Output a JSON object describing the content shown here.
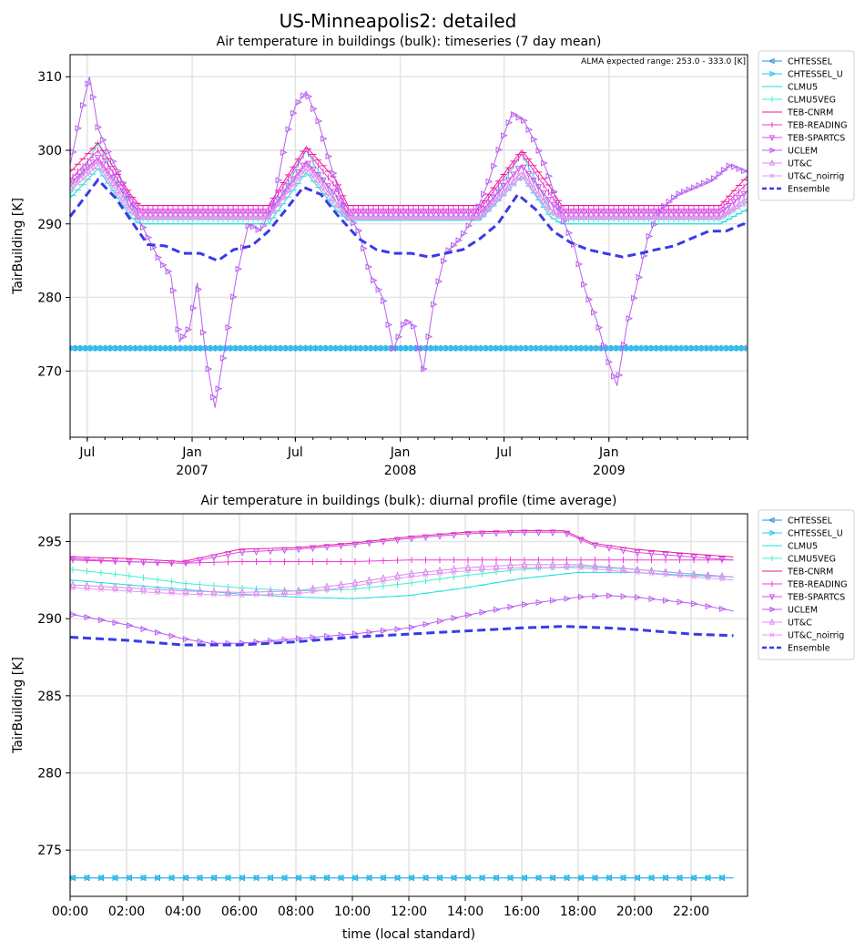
{
  "figure": {
    "suptitle": "US-Minneapolis2: detailed"
  },
  "legend_entries": [
    {
      "name": "CHTESSEL",
      "color": "#2f8fd8",
      "marker": "tri-left"
    },
    {
      "name": "CHTESSEL_U",
      "color": "#22c4f0",
      "marker": "tri-right"
    },
    {
      "name": "CLMU5",
      "color": "#20dfe0",
      "marker": "hline"
    },
    {
      "name": "CLMU5VEG",
      "color": "#40f0c8",
      "marker": "vline"
    },
    {
      "name": "TEB-CNRM",
      "color": "#f01890",
      "marker": "hline"
    },
    {
      "name": "TEB-READING",
      "color": "#f038d8",
      "marker": "vline"
    },
    {
      "name": "TEB-SPARTCS",
      "color": "#d050e8",
      "marker": "tri-down"
    },
    {
      "name": "UCLEM",
      "color": "#b860f0",
      "marker": "tri-right"
    },
    {
      "name": "UT&C",
      "color": "#d888f0",
      "marker": "tri-up"
    },
    {
      "name": "UT&C_noirrig",
      "color": "#e898f0",
      "marker": "x"
    },
    {
      "name": "Ensemble",
      "color": "#3a3ae8",
      "marker": "dashed"
    }
  ],
  "chart_data": [
    {
      "type": "line",
      "title": "Air temperature in buildings (bulk): timeseries (7 day mean)",
      "xlabel": "",
      "ylabel": "TairBuilding [K]",
      "annotation": "ALMA expected range: 253.0 - 333.0 [K]",
      "xlim": [
        "2006-06-01",
        "2009-09-01"
      ],
      "ylim": [
        261,
        313
      ],
      "y_ticks": [
        270,
        280,
        290,
        300,
        310
      ],
      "x_ticks": [
        {
          "date": "2006-07-01",
          "label": "Jul",
          "sub": ""
        },
        {
          "date": "2007-01-01",
          "label": "Jan",
          "sub": "2007"
        },
        {
          "date": "2007-07-01",
          "label": "Jul",
          "sub": ""
        },
        {
          "date": "2008-01-01",
          "label": "Jan",
          "sub": "2008"
        },
        {
          "date": "2008-07-01",
          "label": "Jul",
          "sub": ""
        },
        {
          "date": "2009-01-01",
          "label": "Jan",
          "sub": "2009"
        }
      ],
      "grid": true,
      "legend": "outside-right",
      "series": [
        {
          "name": "CHTESSEL",
          "x": [
            "2006-06-01",
            "2009-09-01"
          ],
          "values": [
            273.1,
            273.1
          ]
        },
        {
          "name": "CHTESSEL_U",
          "x": [
            "2006-06-01",
            "2009-09-01"
          ],
          "values": [
            273.1,
            273.1
          ]
        },
        {
          "name": "CLMU5",
          "x": [
            "2006-06-01",
            "2006-07-20",
            "2006-09-15",
            "2006-10-01",
            "2007-05-15",
            "2007-07-20",
            "2007-09-10",
            "2007-10-01",
            "2008-05-20",
            "2008-08-01",
            "2008-09-20",
            "2008-10-10",
            "2009-07-15",
            "2009-09-01"
          ],
          "values": [
            293.5,
            297.5,
            291,
            290,
            290,
            297,
            292,
            290.5,
            290.5,
            296.5,
            291,
            290,
            290,
            292
          ]
        },
        {
          "name": "CLMU5VEG",
          "x": [
            "2006-06-01",
            "2006-07-20",
            "2006-09-15",
            "2006-10-01",
            "2007-05-15",
            "2007-07-20",
            "2007-09-10",
            "2007-10-01",
            "2008-05-20",
            "2008-08-01",
            "2008-09-20",
            "2008-10-10",
            "2009-07-15",
            "2009-09-01"
          ],
          "values": [
            294,
            301,
            292,
            290.6,
            290.6,
            300,
            293,
            290.8,
            290.8,
            299.5,
            292,
            290.6,
            290.6,
            293
          ]
        },
        {
          "name": "TEB-CNRM",
          "x": [
            "2006-06-01",
            "2006-07-20",
            "2006-09-15",
            "2006-10-01",
            "2007-05-15",
            "2007-07-20",
            "2007-09-10",
            "2007-10-01",
            "2008-05-20",
            "2008-08-01",
            "2008-09-20",
            "2008-10-10",
            "2009-07-15",
            "2009-09-01"
          ],
          "values": [
            297,
            301,
            294,
            292.5,
            292.5,
            300.5,
            296,
            292.5,
            292.5,
            300,
            295,
            292.5,
            292.5,
            296.5
          ]
        },
        {
          "name": "TEB-READING",
          "x": [
            "2006-06-01",
            "2006-07-20",
            "2006-09-15",
            "2006-10-01",
            "2007-05-15",
            "2007-07-20",
            "2007-09-10",
            "2007-10-01",
            "2008-05-20",
            "2008-08-01",
            "2008-09-20",
            "2008-10-10",
            "2009-07-15",
            "2009-09-01"
          ],
          "values": [
            296,
            300,
            293.5,
            292,
            292,
            300,
            295,
            292,
            292,
            299.5,
            294,
            292,
            292,
            295.5
          ]
        },
        {
          "name": "TEB-SPARTCS",
          "x": [
            "2006-06-01",
            "2006-07-20",
            "2006-09-15",
            "2006-10-01",
            "2007-05-15",
            "2007-07-20",
            "2007-09-10",
            "2007-10-01",
            "2008-05-20",
            "2008-08-01",
            "2008-09-20",
            "2008-10-10",
            "2009-07-15",
            "2009-09-01"
          ],
          "values": [
            295.5,
            299,
            293,
            291.5,
            291.5,
            298.5,
            294,
            291.5,
            291.5,
            298,
            293,
            291.5,
            291.5,
            294.5
          ]
        },
        {
          "name": "UCLEM",
          "x": [
            "2006-06-01",
            "2006-06-20",
            "2006-07-05",
            "2006-07-20",
            "2006-08-05",
            "2006-08-25",
            "2006-09-15",
            "2006-10-10",
            "2006-11-05",
            "2006-11-25",
            "2006-12-10",
            "2006-12-28",
            "2007-01-10",
            "2007-01-25",
            "2007-02-10",
            "2007-03-01",
            "2007-03-20",
            "2007-04-10",
            "2007-05-01",
            "2007-05-25",
            "2007-06-15",
            "2007-07-01",
            "2007-07-20",
            "2007-08-10",
            "2007-09-01",
            "2007-09-25",
            "2007-10-20",
            "2007-11-10",
            "2007-12-01",
            "2007-12-20",
            "2008-01-10",
            "2008-01-25",
            "2008-02-10",
            "2008-03-01",
            "2008-03-20",
            "2008-04-15",
            "2008-05-10",
            "2008-06-05",
            "2008-06-25",
            "2008-07-15",
            "2008-08-05",
            "2008-08-25",
            "2008-09-15",
            "2008-10-10",
            "2008-11-01",
            "2008-11-20",
            "2008-12-10",
            "2008-12-28",
            "2009-01-15",
            "2009-02-01",
            "2009-02-20",
            "2009-03-10",
            "2009-04-01",
            "2009-05-01",
            "2009-06-01",
            "2009-07-01",
            "2009-08-01",
            "2009-09-01"
          ],
          "values": [
            298,
            305,
            310,
            303,
            300,
            297,
            293,
            289,
            285,
            283,
            274,
            276,
            282,
            272,
            265,
            274,
            283,
            290,
            289,
            293,
            302,
            306,
            308,
            304,
            298,
            292,
            289,
            283,
            280,
            273,
            277,
            276,
            270,
            280,
            286,
            288,
            291,
            296,
            301,
            305,
            304,
            301,
            297,
            291,
            287,
            281,
            277,
            272,
            268,
            276,
            282,
            288,
            292,
            294,
            295,
            296,
            298,
            297
          ]
        },
        {
          "name": "UT&C",
          "x": [
            "2006-06-01",
            "2006-07-20",
            "2006-09-15",
            "2006-10-01",
            "2007-05-15",
            "2007-07-20",
            "2007-09-10",
            "2007-10-01",
            "2008-05-20",
            "2008-08-01",
            "2008-09-20",
            "2008-10-10",
            "2009-07-15",
            "2009-09-01"
          ],
          "values": [
            295,
            298.5,
            292,
            291,
            291,
            298,
            293,
            291,
            291,
            297,
            292,
            291,
            291,
            293.5
          ]
        },
        {
          "name": "UT&C_noirrig",
          "x": [
            "2006-06-01",
            "2006-07-20",
            "2006-09-15",
            "2006-10-01",
            "2007-05-15",
            "2007-07-20",
            "2007-09-10",
            "2007-10-01",
            "2008-05-20",
            "2008-08-01",
            "2008-09-20",
            "2008-10-10",
            "2009-07-15",
            "2009-09-01"
          ],
          "values": [
            294.5,
            298,
            291.5,
            290.8,
            290.8,
            297.5,
            292.5,
            290.8,
            290.8,
            296.5,
            291.5,
            290.8,
            290.8,
            293
          ]
        },
        {
          "name": "Ensemble",
          "x": [
            "2006-06-01",
            "2006-07-20",
            "2006-08-20",
            "2006-09-20",
            "2006-10-15",
            "2006-11-15",
            "2006-12-15",
            "2007-01-15",
            "2007-02-15",
            "2007-03-15",
            "2007-04-15",
            "2007-05-15",
            "2007-06-15",
            "2007-07-15",
            "2007-08-15",
            "2007-09-15",
            "2007-10-20",
            "2007-11-20",
            "2007-12-20",
            "2008-01-20",
            "2008-02-20",
            "2008-03-20",
            "2008-04-20",
            "2008-05-20",
            "2008-06-20",
            "2008-07-25",
            "2008-08-25",
            "2008-09-25",
            "2008-10-25",
            "2008-11-25",
            "2008-12-25",
            "2009-01-25",
            "2009-02-25",
            "2009-03-25",
            "2009-04-25",
            "2009-05-25",
            "2009-06-25",
            "2009-07-25",
            "2009-08-25",
            "2009-09-01"
          ],
          "values": [
            291,
            296,
            293.5,
            290,
            287.2,
            287,
            286,
            286,
            285,
            286.5,
            287,
            289,
            292,
            295,
            294,
            291,
            288,
            286.5,
            286,
            286,
            285.5,
            286,
            286.5,
            288,
            290,
            294,
            292,
            289,
            287.5,
            286.5,
            286,
            285.5,
            286,
            286.5,
            287,
            288,
            289,
            289,
            290,
            289.8
          ]
        }
      ]
    },
    {
      "type": "line",
      "title": "Air temperature in buildings (bulk): diurnal profile (time average)",
      "xlabel": "time (local standard)",
      "ylabel": "TairBuilding [K]",
      "xlim": [
        0,
        24
      ],
      "ylim": [
        272,
        296.8
      ],
      "y_ticks": [
        275,
        280,
        285,
        290,
        295
      ],
      "x_ticks": [
        {
          "hour": 0,
          "label": "00:00"
        },
        {
          "hour": 2,
          "label": "02:00"
        },
        {
          "hour": 4,
          "label": "04:00"
        },
        {
          "hour": 6,
          "label": "06:00"
        },
        {
          "hour": 8,
          "label": "08:00"
        },
        {
          "hour": 10,
          "label": "10:00"
        },
        {
          "hour": 12,
          "label": "12:00"
        },
        {
          "hour": 14,
          "label": "14:00"
        },
        {
          "hour": 16,
          "label": "16:00"
        },
        {
          "hour": 18,
          "label": "18:00"
        },
        {
          "hour": 20,
          "label": "20:00"
        },
        {
          "hour": 22,
          "label": "22:00"
        }
      ],
      "grid": true,
      "legend": "outside-right",
      "series": [
        {
          "name": "CHTESSEL",
          "x": [
            0,
            23.5
          ],
          "values": [
            273.2,
            273.2
          ]
        },
        {
          "name": "CHTESSEL_U",
          "x": [
            0,
            23.5
          ],
          "values": [
            273.2,
            273.2
          ]
        },
        {
          "name": "CLMU5",
          "x": [
            0,
            2,
            4,
            6,
            8,
            10,
            12,
            14,
            16,
            18,
            20,
            22,
            23.5
          ],
          "values": [
            292.5,
            292.2,
            291.9,
            291.6,
            291.4,
            291.3,
            291.5,
            292,
            292.6,
            293,
            293,
            292.8,
            292.7
          ]
        },
        {
          "name": "CLMU5VEG",
          "x": [
            0,
            2,
            4,
            6,
            8,
            10,
            12,
            14,
            16,
            18,
            20,
            22,
            23.5
          ],
          "values": [
            293.2,
            292.8,
            292.3,
            292,
            291.8,
            291.9,
            292.3,
            292.8,
            293.2,
            293.4,
            293.2,
            292.9,
            292.7
          ]
        },
        {
          "name": "TEB-CNRM",
          "x": [
            0,
            2,
            4,
            6,
            8,
            10,
            12,
            14,
            16,
            17.5,
            18.5,
            20,
            22,
            23.5
          ],
          "values": [
            294,
            293.9,
            293.7,
            294.5,
            294.6,
            294.9,
            295.3,
            295.6,
            295.7,
            295.7,
            294.9,
            294.5,
            294.2,
            294
          ]
        },
        {
          "name": "TEB-READING",
          "x": [
            0,
            2,
            4,
            6,
            8,
            10,
            12,
            14,
            16,
            18,
            20,
            22,
            23.5
          ],
          "values": [
            293.8,
            293.7,
            293.6,
            293.7,
            293.7,
            293.7,
            293.8,
            293.8,
            293.8,
            293.8,
            293.8,
            293.8,
            293.8
          ]
        },
        {
          "name": "TEB-SPARTCS",
          "x": [
            0,
            2,
            4,
            6,
            8,
            10,
            12,
            14,
            16,
            17.5,
            18.5,
            20,
            22,
            23.5
          ],
          "values": [
            293.9,
            293.7,
            293.6,
            294.3,
            294.5,
            294.8,
            295.2,
            295.5,
            295.6,
            295.6,
            294.8,
            294.3,
            294,
            293.8
          ]
        },
        {
          "name": "UCLEM",
          "x": [
            0,
            2,
            4,
            5,
            6,
            8,
            10,
            12,
            14,
            16,
            18,
            19,
            20,
            22,
            23.5
          ],
          "values": [
            290.3,
            289.6,
            288.7,
            288.4,
            288.4,
            288.7,
            289,
            289.4,
            290.2,
            290.9,
            291.4,
            291.5,
            291.4,
            291,
            290.5
          ]
        },
        {
          "name": "UT&C",
          "x": [
            0,
            2,
            4,
            6,
            8,
            10,
            12,
            14,
            16,
            18,
            20,
            22,
            23.5
          ],
          "values": [
            292.2,
            292,
            291.8,
            291.7,
            291.8,
            292.3,
            292.9,
            293.3,
            293.5,
            293.5,
            293.2,
            292.9,
            292.7
          ]
        },
        {
          "name": "UT&C_noirrig",
          "x": [
            0,
            2,
            4,
            6,
            8,
            10,
            12,
            14,
            16,
            18,
            20,
            22,
            23.5
          ],
          "values": [
            292,
            291.8,
            291.6,
            291.5,
            291.6,
            292.1,
            292.7,
            293.1,
            293.3,
            293.3,
            293,
            292.7,
            292.5
          ]
        },
        {
          "name": "Ensemble",
          "x": [
            0,
            2,
            4,
            5,
            6,
            8,
            10,
            12,
            14,
            16,
            17.5,
            19,
            20,
            22,
            23.5
          ],
          "values": [
            288.8,
            288.6,
            288.3,
            288.3,
            288.3,
            288.5,
            288.8,
            289,
            289.2,
            289.4,
            289.5,
            289.4,
            289.3,
            289,
            288.9
          ]
        }
      ]
    }
  ]
}
